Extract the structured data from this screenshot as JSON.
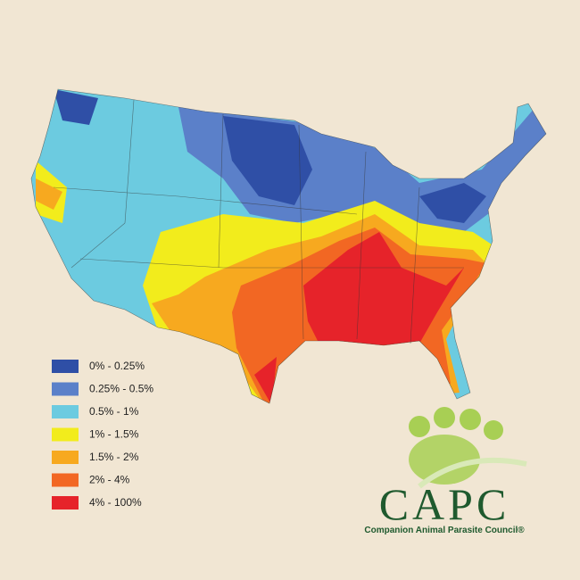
{
  "legend": {
    "items": [
      {
        "label": "0% - 0.25%",
        "color": "#2f4fa6"
      },
      {
        "label": "0.25% - 0.5%",
        "color": "#5b80c9"
      },
      {
        "label": "0.5% - 1%",
        "color": "#6ccbe0"
      },
      {
        "label": "1% - 1.5%",
        "color": "#f2ec1c"
      },
      {
        "label": "1.5% - 2%",
        "color": "#f7a91f"
      },
      {
        "label": "2% - 4%",
        "color": "#f26723"
      },
      {
        "label": "4% - 100%",
        "color": "#e6232a"
      }
    ]
  },
  "logo": {
    "name": "CAPC",
    "tagline": "Companion Animal Parasite Council®"
  }
}
